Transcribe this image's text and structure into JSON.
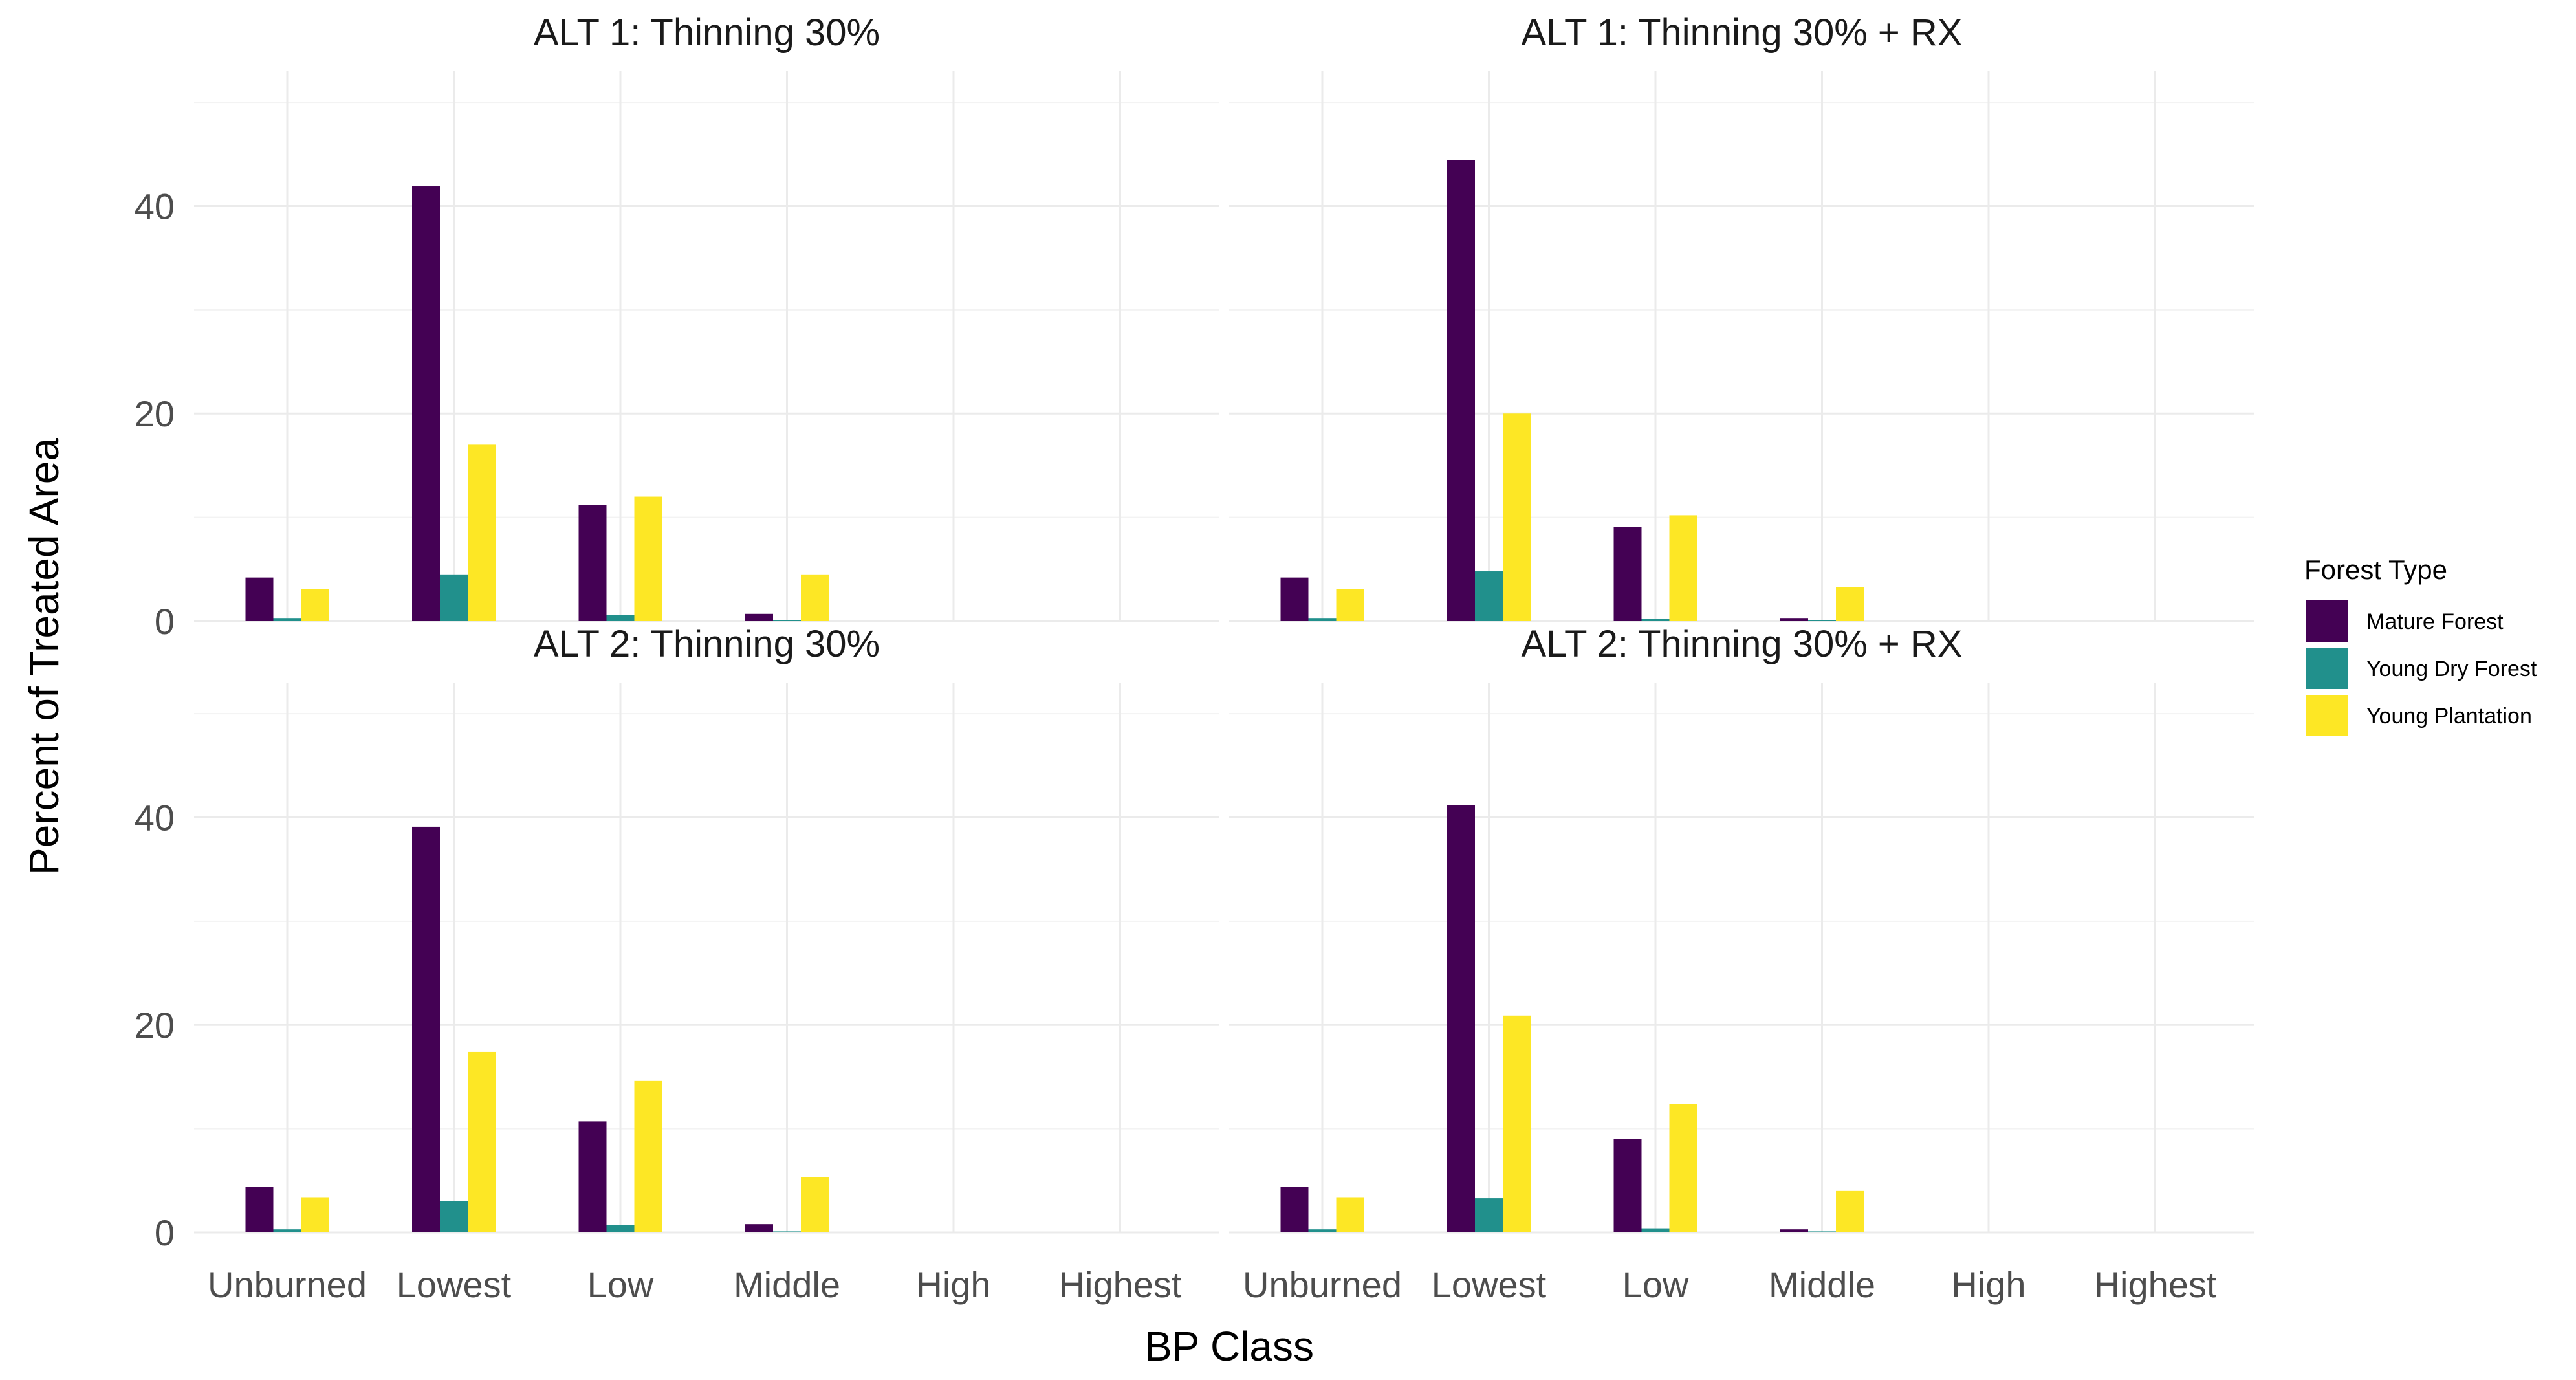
{
  "chart_data": {
    "type": "bar",
    "layout": "facet-grid-2x2",
    "xlabel": "BP Class",
    "ylabel": "Percent of Treated Area",
    "ylim": [
      0,
      53
    ],
    "yticks": [
      0,
      20,
      40
    ],
    "categories": [
      "Unburned",
      "Lowest",
      "Low",
      "Middle",
      "High",
      "Highest"
    ],
    "legend": {
      "title": "Forest Type",
      "position": "right",
      "entries": [
        {
          "name": "Mature Forest",
          "color": "#440154"
        },
        {
          "name": "Young Dry Forest",
          "color": "#21908C"
        },
        {
          "name": "Young Plantation",
          "color": "#FDE725"
        }
      ]
    },
    "panels": [
      {
        "title": "ALT 1: Thinning 30%",
        "series": [
          {
            "name": "Mature Forest",
            "values": [
              4.2,
              41.9,
              11.2,
              0.7,
              0,
              0
            ]
          },
          {
            "name": "Young Dry Forest",
            "values": [
              0.3,
              4.5,
              0.6,
              0.1,
              0,
              0
            ]
          },
          {
            "name": "Young Plantation",
            "values": [
              3.1,
              17.0,
              12.0,
              4.5,
              0,
              0
            ]
          }
        ]
      },
      {
        "title": "ALT 1: Thinning 30% + RX",
        "series": [
          {
            "name": "Mature Forest",
            "values": [
              4.2,
              44.4,
              9.1,
              0.3,
              0,
              0
            ]
          },
          {
            "name": "Young Dry Forest",
            "values": [
              0.3,
              4.8,
              0.2,
              0.1,
              0,
              0
            ]
          },
          {
            "name": "Young Plantation",
            "values": [
              3.1,
              20.0,
              10.2,
              3.3,
              0,
              0
            ]
          }
        ]
      },
      {
        "title": "ALT 2: Thinning 30%",
        "series": [
          {
            "name": "Mature Forest",
            "values": [
              4.4,
              39.1,
              10.7,
              0.8,
              0,
              0
            ]
          },
          {
            "name": "Young Dry Forest",
            "values": [
              0.3,
              3.0,
              0.7,
              0.1,
              0,
              0
            ]
          },
          {
            "name": "Young Plantation",
            "values": [
              3.4,
              17.4,
              14.6,
              5.3,
              0,
              0
            ]
          }
        ]
      },
      {
        "title": "ALT 2: Thinning 30% + RX",
        "series": [
          {
            "name": "Mature Forest",
            "values": [
              4.4,
              41.2,
              9.0,
              0.3,
              0,
              0
            ]
          },
          {
            "name": "Young Dry Forest",
            "values": [
              0.3,
              3.3,
              0.4,
              0.1,
              0,
              0
            ]
          },
          {
            "name": "Young Plantation",
            "values": [
              3.4,
              20.9,
              12.4,
              4.0,
              0,
              0
            ]
          }
        ]
      }
    ]
  }
}
